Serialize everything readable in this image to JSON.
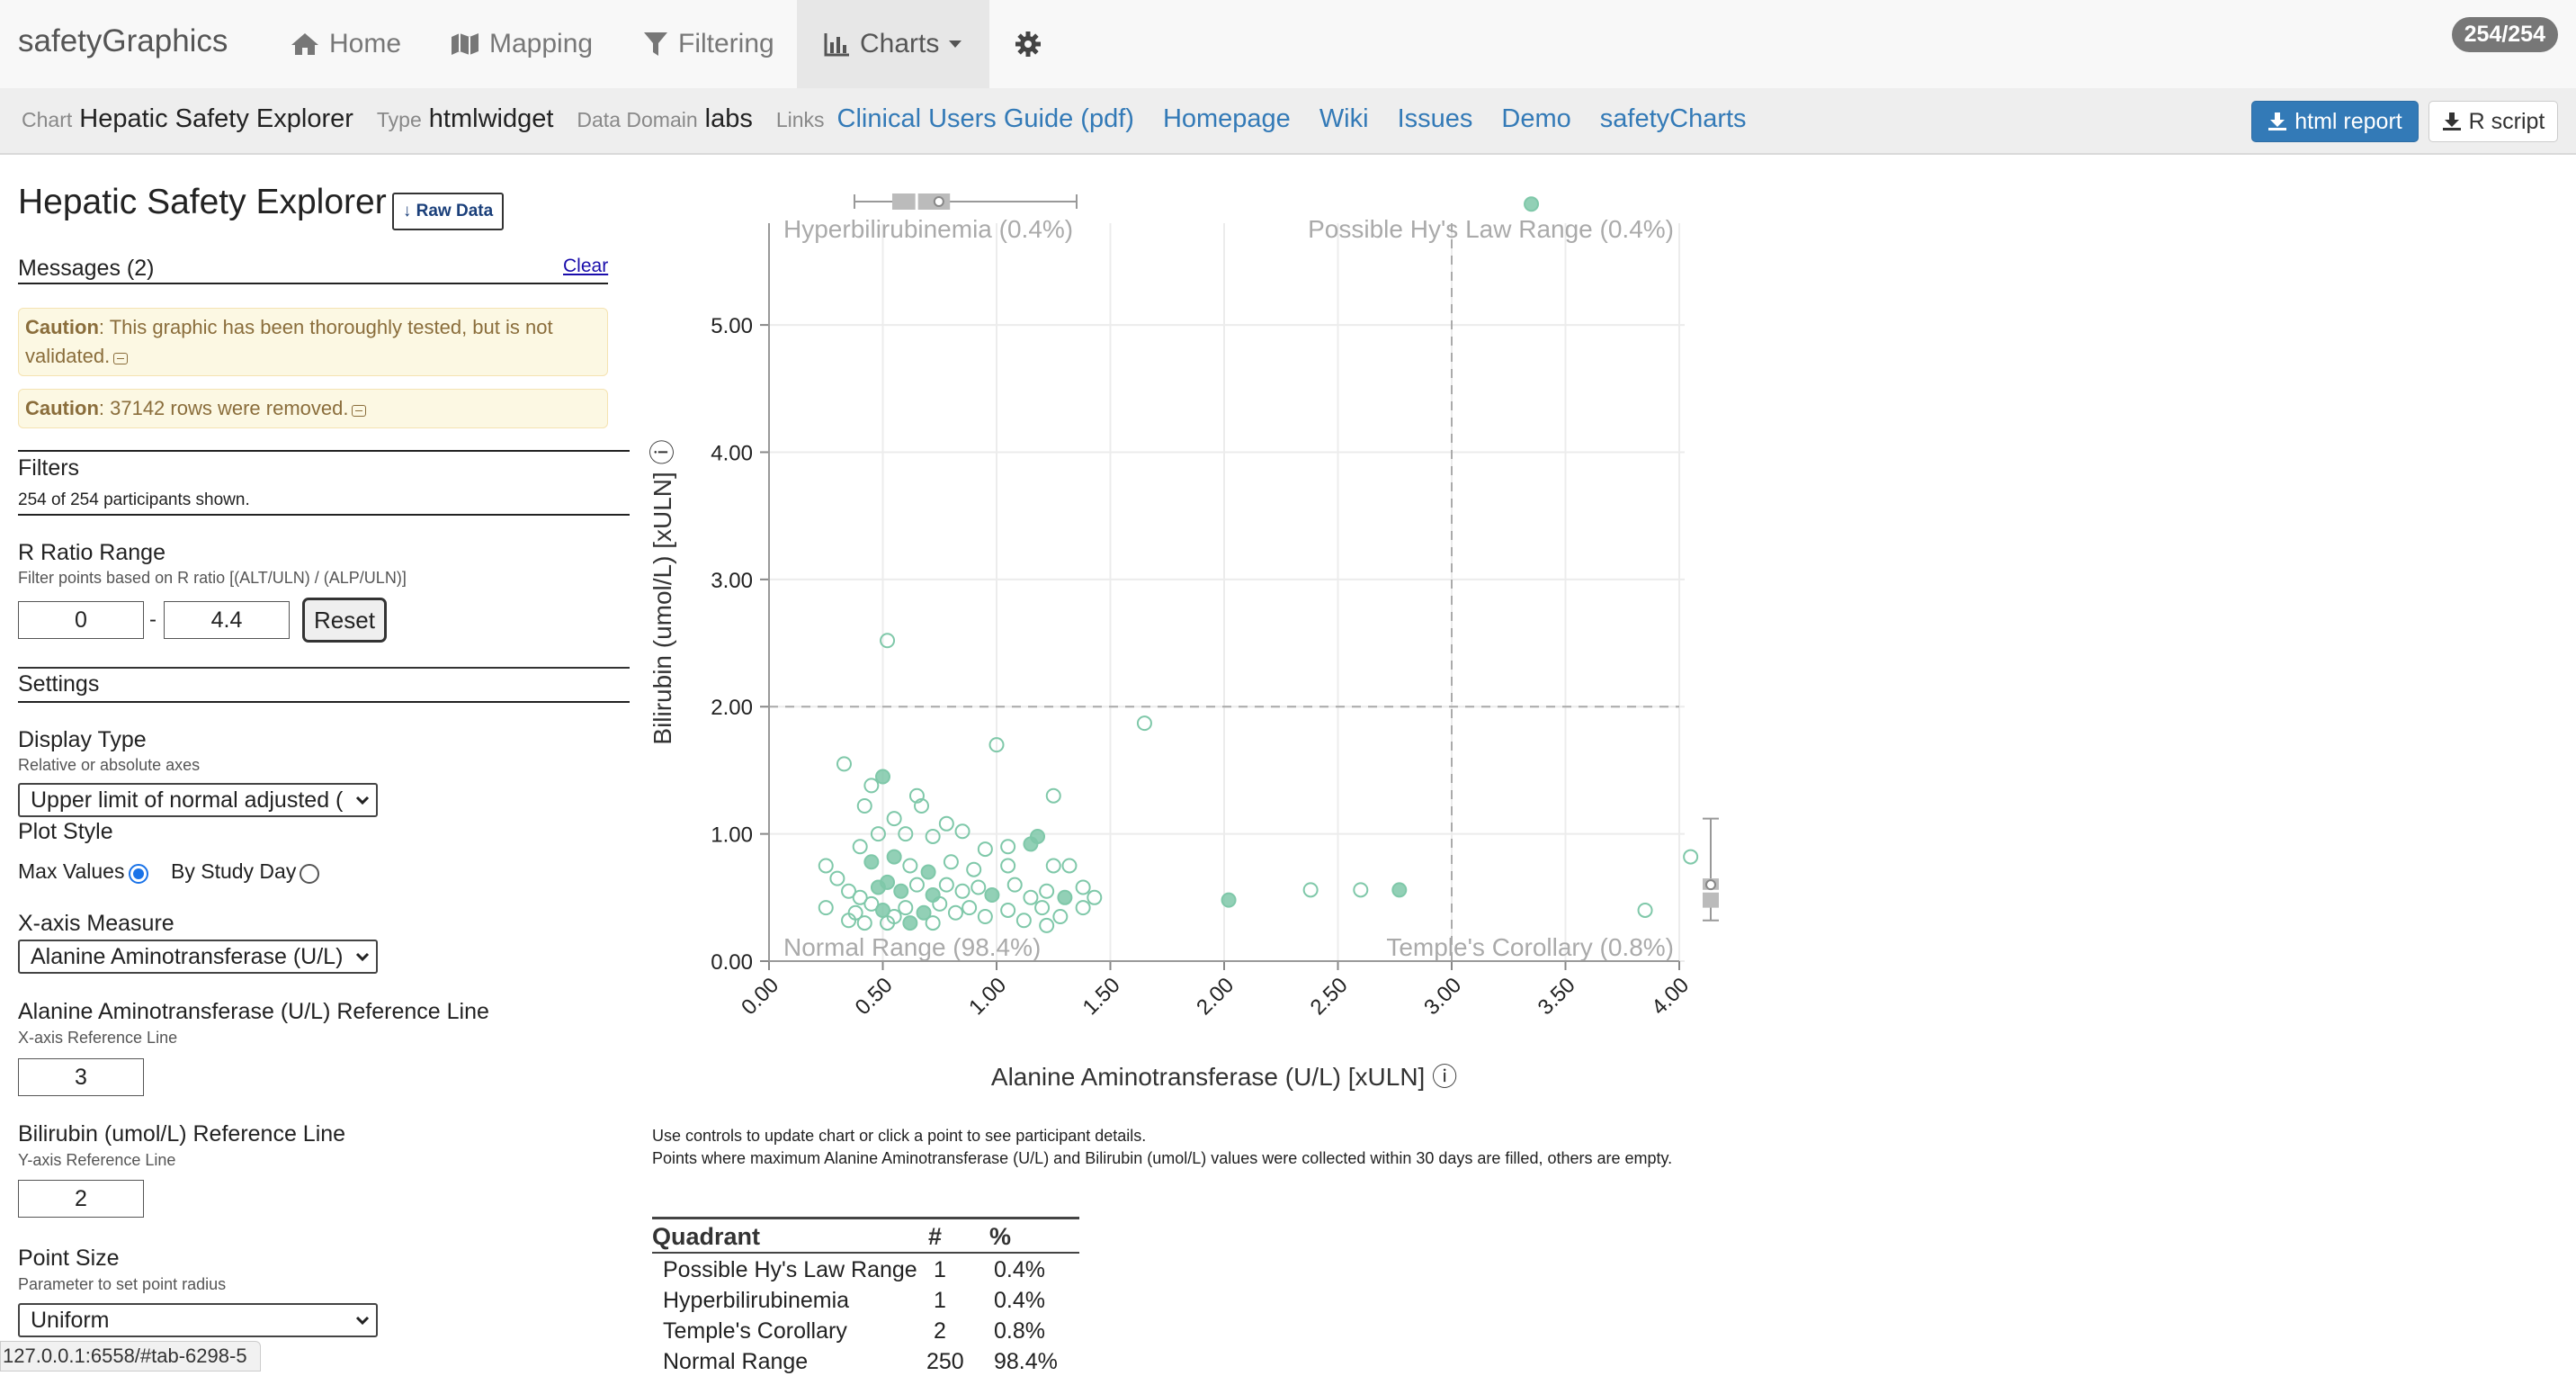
{
  "navbar": {
    "brand": "safetyGraphics",
    "items": [
      {
        "label": "Home",
        "icon": "home-icon"
      },
      {
        "label": "Mapping",
        "icon": "map-icon"
      },
      {
        "label": "Filtering",
        "icon": "filter-icon"
      },
      {
        "label": "Charts",
        "icon": "bar-chart-icon",
        "active": true
      },
      {
        "label": "",
        "icon": "gear-icon"
      }
    ],
    "count_badge": "254/254"
  },
  "infobar": {
    "chart_label": "Chart",
    "chart_value": "Hepatic Safety Explorer",
    "type_label": "Type",
    "type_value": "htmlwidget",
    "domain_label": "Data Domain",
    "domain_value": "labs",
    "links_label": "Links",
    "links": [
      "Clinical Users Guide (pdf)",
      "Homepage",
      "Wiki",
      "Issues",
      "Demo",
      "safetyCharts"
    ],
    "html_report": "html report",
    "r_script": "R script"
  },
  "panel": {
    "title": "Hepatic Safety Explorer",
    "raw_data": "↓ Raw Data",
    "messages_title": "Messages (2)",
    "clear": "Clear",
    "cautions": [
      {
        "label": "Caution",
        "text": ": This graphic has been thoroughly tested, but is not",
        "text2": "validated."
      },
      {
        "label": "Caution",
        "text": ": 37142 rows were removed.",
        "text2": ""
      }
    ],
    "filters_title": "Filters",
    "filters_note": "254 of 254 participants shown.",
    "rratio_title": "R Ratio Range",
    "rratio_help": "Filter points based on R ratio [(ALT/ULN) / (ALP/ULN)]",
    "rratio_min": "0",
    "rratio_sep": "-",
    "rratio_max": "4.4",
    "reset": "Reset",
    "settings_title": "Settings",
    "display_type_label": "Display Type",
    "display_type_help": "Relative or absolute axes",
    "display_type_value": "Upper limit of normal adjusted (",
    "plot_style_label": "Plot Style",
    "plot_style_opt1": "Max Values",
    "plot_style_opt2": "By Study Day",
    "xmeasure_label": "X-axis Measure",
    "xmeasure_value": "Alanine Aminotransferase (U/L)",
    "xref_label": "Alanine Aminotransferase (U/L) Reference Line",
    "xref_help": "X-axis Reference Line",
    "xref_value": "3",
    "yref_label": "Bilirubin (umol/L) Reference Line",
    "yref_help": "Y-axis Reference Line",
    "yref_value": "2",
    "pointsize_label": "Point Size",
    "pointsize_help": "Parameter to set point radius",
    "pointsize_value": "Uniform"
  },
  "status_url": "127.0.0.1:6558/#tab-6298-5",
  "notes": [
    "Use controls to update chart or click a point to see participant details.",
    "Points where maximum Alanine Aminotransferase (U/L) and Bilirubin (umol/L) values were collected within 30 days are filled, others are empty."
  ],
  "quadrant_table": {
    "headers": [
      "Quadrant",
      "#",
      "%"
    ],
    "rows": [
      [
        "Possible Hy's Law Range",
        "1",
        "0.4%"
      ],
      [
        "Hyperbilirubinemia",
        "1",
        "0.4%"
      ],
      [
        "Temple's Corollary",
        "2",
        "0.8%"
      ],
      [
        "Normal Range",
        "250",
        "98.4%"
      ]
    ]
  },
  "chart_data": {
    "type": "scatter",
    "xlabel": "Alanine Aminotransferase (U/L) [xULN] ⓘ",
    "ylabel": "Bilirubin (umol/L) [xULN] ⓘ",
    "xlim": [
      0,
      4.0
    ],
    "ylim": [
      0,
      5.8
    ],
    "x_ticks": [
      "0.00",
      "0.50",
      "1.00",
      "1.50",
      "2.00",
      "2.50",
      "3.00",
      "3.50",
      "4.00"
    ],
    "y_ticks": [
      "0.00",
      "1.00",
      "2.00",
      "3.00",
      "4.00",
      "5.00"
    ],
    "x_reference": 3,
    "y_reference": 2,
    "quadrant_labels": {
      "top_left": "Hyperbilirubinemia (0.4%)",
      "top_right": "Possible Hy's Law Range (0.4%)",
      "bottom_left": "Normal Range (98.4%)",
      "bottom_right": "Temple's Corollary (0.8%)"
    },
    "point_color": "#7fc8a9",
    "points": [
      {
        "x": 3.35,
        "y": 5.95,
        "filled": true
      },
      {
        "x": 0.52,
        "y": 2.52
      },
      {
        "x": 1.65,
        "y": 1.87
      },
      {
        "x": 1.0,
        "y": 1.7
      },
      {
        "x": 0.33,
        "y": 1.55
      },
      {
        "x": 0.5,
        "y": 1.45,
        "filled": true
      },
      {
        "x": 0.45,
        "y": 1.38
      },
      {
        "x": 0.65,
        "y": 1.3
      },
      {
        "x": 0.67,
        "y": 1.22
      },
      {
        "x": 1.25,
        "y": 1.3
      },
      {
        "x": 0.42,
        "y": 1.22
      },
      {
        "x": 0.55,
        "y": 1.12
      },
      {
        "x": 0.78,
        "y": 1.08
      },
      {
        "x": 0.85,
        "y": 1.02
      },
      {
        "x": 0.48,
        "y": 1.0
      },
      {
        "x": 0.6,
        "y": 1.0
      },
      {
        "x": 0.72,
        "y": 0.98
      },
      {
        "x": 0.4,
        "y": 0.9
      },
      {
        "x": 1.18,
        "y": 0.98,
        "filled": true
      },
      {
        "x": 1.05,
        "y": 0.9
      },
      {
        "x": 0.95,
        "y": 0.88
      },
      {
        "x": 1.15,
        "y": 0.92,
        "filled": true
      },
      {
        "x": 0.25,
        "y": 0.75
      },
      {
        "x": 0.3,
        "y": 0.65
      },
      {
        "x": 0.45,
        "y": 0.78,
        "filled": true
      },
      {
        "x": 0.55,
        "y": 0.82,
        "filled": true
      },
      {
        "x": 0.62,
        "y": 0.75
      },
      {
        "x": 0.7,
        "y": 0.7,
        "filled": true
      },
      {
        "x": 0.8,
        "y": 0.78
      },
      {
        "x": 0.9,
        "y": 0.72
      },
      {
        "x": 1.05,
        "y": 0.75
      },
      {
        "x": 1.25,
        "y": 0.75
      },
      {
        "x": 1.32,
        "y": 0.75
      },
      {
        "x": 0.35,
        "y": 0.55
      },
      {
        "x": 0.4,
        "y": 0.5
      },
      {
        "x": 0.48,
        "y": 0.58,
        "filled": true
      },
      {
        "x": 0.52,
        "y": 0.62,
        "filled": true
      },
      {
        "x": 0.58,
        "y": 0.55,
        "filled": true
      },
      {
        "x": 0.65,
        "y": 0.6
      },
      {
        "x": 0.72,
        "y": 0.52,
        "filled": true
      },
      {
        "x": 0.78,
        "y": 0.6
      },
      {
        "x": 0.85,
        "y": 0.55
      },
      {
        "x": 0.92,
        "y": 0.58
      },
      {
        "x": 0.98,
        "y": 0.52,
        "filled": true
      },
      {
        "x": 1.08,
        "y": 0.6
      },
      {
        "x": 1.15,
        "y": 0.5
      },
      {
        "x": 1.22,
        "y": 0.55
      },
      {
        "x": 1.3,
        "y": 0.5,
        "filled": true
      },
      {
        "x": 1.38,
        "y": 0.58
      },
      {
        "x": 1.43,
        "y": 0.5
      },
      {
        "x": 0.25,
        "y": 0.42
      },
      {
        "x": 0.38,
        "y": 0.38
      },
      {
        "x": 0.45,
        "y": 0.45
      },
      {
        "x": 0.5,
        "y": 0.4,
        "filled": true
      },
      {
        "x": 0.55,
        "y": 0.35
      },
      {
        "x": 0.6,
        "y": 0.42
      },
      {
        "x": 0.68,
        "y": 0.38,
        "filled": true
      },
      {
        "x": 0.75,
        "y": 0.45
      },
      {
        "x": 0.82,
        "y": 0.38
      },
      {
        "x": 0.88,
        "y": 0.42
      },
      {
        "x": 0.95,
        "y": 0.35
      },
      {
        "x": 1.05,
        "y": 0.4
      },
      {
        "x": 1.12,
        "y": 0.32
      },
      {
        "x": 1.22,
        "y": 0.28
      },
      {
        "x": 1.28,
        "y": 0.35
      },
      {
        "x": 1.38,
        "y": 0.42
      },
      {
        "x": 0.35,
        "y": 0.32
      },
      {
        "x": 0.42,
        "y": 0.3
      },
      {
        "x": 0.52,
        "y": 0.3
      },
      {
        "x": 0.62,
        "y": 0.3,
        "filled": true
      },
      {
        "x": 0.72,
        "y": 0.3
      },
      {
        "x": 1.2,
        "y": 0.42
      },
      {
        "x": 2.02,
        "y": 0.48,
        "filled": true
      },
      {
        "x": 2.38,
        "y": 0.56
      },
      {
        "x": 2.6,
        "y": 0.56
      },
      {
        "x": 2.77,
        "y": 0.56,
        "filled": true
      },
      {
        "x": 3.85,
        "y": 0.4
      },
      {
        "x": 4.05,
        "y": 0.82
      }
    ],
    "slider_box": {
      "min": 0.35,
      "q1": 0.52,
      "median": 0.63,
      "q3": 0.78,
      "max": 1.35,
      "mean": 0.73
    },
    "y_box": {
      "min": 0.32,
      "q1": 0.42,
      "median": 0.55,
      "q3": 0.65,
      "max": 1.12,
      "mean": 0.6
    }
  }
}
